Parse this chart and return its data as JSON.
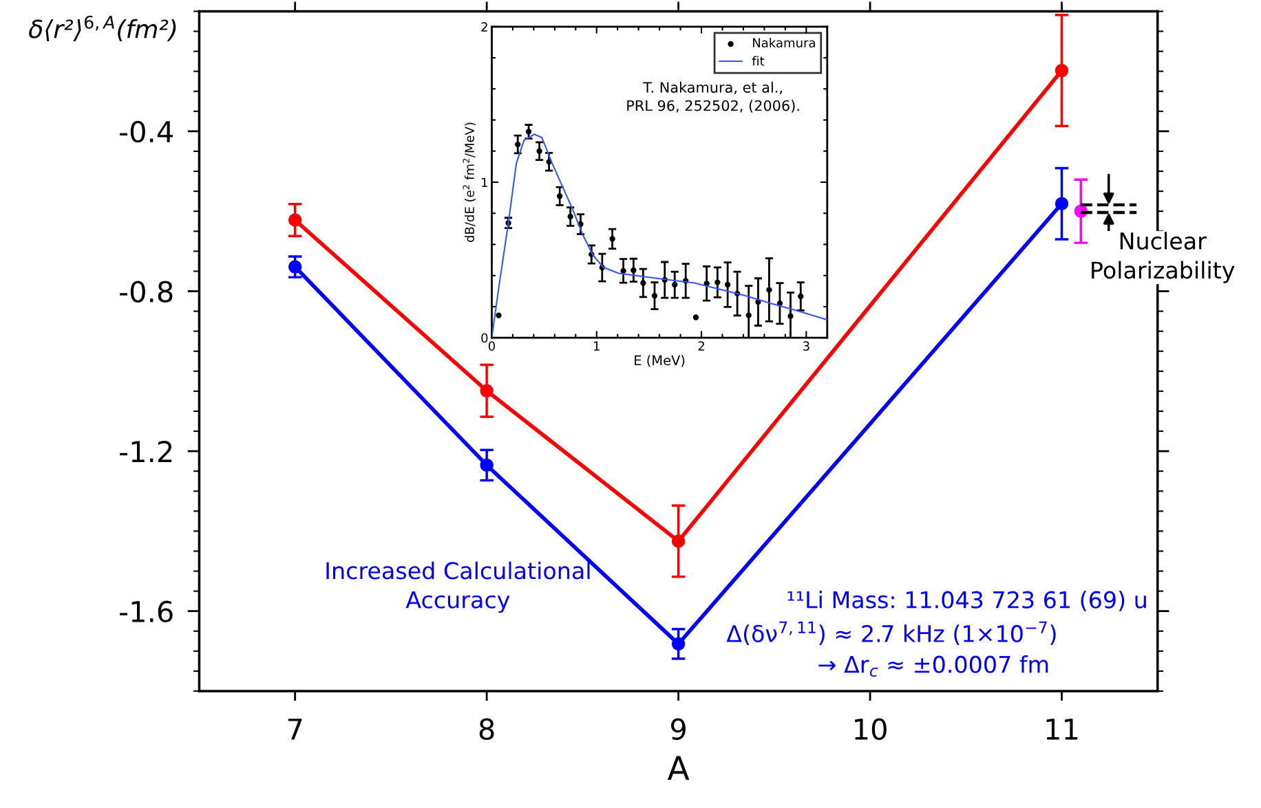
{
  "chart_data": [
    {
      "type": "line",
      "xlabel": "A",
      "ylabel": "δ⟨r²⟩$^{6,A}$(fm²)",
      "x": [
        7,
        8,
        9,
        11
      ],
      "xlim": [
        6.5,
        11.5
      ],
      "xticks": [
        7,
        8,
        9,
        10,
        11
      ],
      "ylim": [
        -1.8,
        -0.1
      ],
      "yticks": [
        -0.4,
        -0.8,
        -1.2,
        -1.6
      ],
      "grid": false,
      "legend": false,
      "marker": "circle",
      "line_style": "solid",
      "series": [
        {
          "color": "#ff0000",
          "values": [
            -0.622,
            -1.049,
            -1.425,
            -0.248
          ],
          "errors": [
            0.04,
            0.065,
            0.089,
            0.139
          ]
        },
        {
          "color": "#0000ff",
          "values": [
            -0.739,
            -1.235,
            -1.682,
            -0.581
          ],
          "errors": [
            0.026,
            0.038,
            0.037,
            0.089
          ]
        },
        {
          "type": "scatter",
          "color": "#ff00ff",
          "x": [
            11.1
          ],
          "values": [
            -0.6
          ],
          "errors": [
            0.079
          ]
        },
        {
          "color": "#000000",
          "x": [
            11.1,
            11.39
          ],
          "values": [
            -0.584,
            -0.584
          ],
          "line_style": "dashed",
          "marker": "none"
        },
        {
          "color": "#000000",
          "x": [
            11.1,
            11.39
          ],
          "values": [
            -0.603,
            -0.603
          ],
          "line_style": "dashed",
          "marker": "none"
        }
      ],
      "annotations": [
        "Increased Calculational\nAccuracy",
        "¹¹Li Mass: 11.043 723 61 (69) u",
        "Δ(δν$^{7,11}$) ≈ 2.7 kHz (1×10$^{−7}$)",
        "→ Δr$_{c}$ ≈ ±0.0007 fm",
        "Nuclear\nPolarizability"
      ]
    },
    {
      "type": "scatter",
      "xlabel": "E (MeV)",
      "ylabel": "dB/dE (e$^{2}$ fm$^{2}$/MeV)",
      "xlim": [
        0,
        3.2
      ],
      "xticks": [
        0,
        1,
        2,
        3
      ],
      "ylim": [
        0,
        2
      ],
      "yticks": [
        0,
        1,
        2
      ],
      "grid": false,
      "legend": "top right",
      "marker": "circle",
      "series": [
        {
          "name": "Nakamura",
          "color": "#000000",
          "x": [
            0.066,
            0.158,
            0.248,
            0.352,
            0.454,
            0.546,
            0.648,
            0.75,
            0.847,
            0.951,
            1.053,
            1.15,
            1.255,
            1.352,
            1.444,
            1.553,
            1.65,
            1.745,
            1.85,
            1.947,
            2.05,
            2.153,
            2.25,
            2.342,
            2.451,
            2.541,
            2.646,
            2.748,
            2.85,
            2.947
          ],
          "values": [
            0.144,
            0.738,
            1.243,
            1.325,
            1.2,
            1.131,
            0.91,
            0.779,
            0.73,
            0.536,
            0.451,
            0.636,
            0.43,
            0.434,
            0.352,
            0.27,
            0.372,
            0.341,
            0.366,
            0.131,
            0.349,
            0.356,
            0.341,
            0.284,
            0.144,
            0.23,
            0.308,
            0.221,
            0.139,
            0.266
          ],
          "errors": [
            null,
            0.033,
            0.057,
            0.044,
            0.057,
            0.057,
            0.058,
            0.059,
            0.064,
            0.058,
            0.088,
            0.063,
            0.076,
            0.074,
            0.09,
            0.086,
            0.115,
            0.084,
            0.109,
            null,
            0.11,
            0.096,
            0.143,
            0.141,
            0.19,
            0.152,
            0.203,
            0.131,
            0.152,
            0.09
          ]
        },
        {
          "name": "fit",
          "type": "line",
          "color": "#3355ff",
          "marker": "none",
          "x": [
            0,
            0.066,
            0.158,
            0.235,
            0.308,
            0.405,
            0.478,
            0.575,
            0.672,
            0.77,
            0.867,
            0.964,
            1.061,
            1.206,
            1.449,
            1.692,
            1.934,
            2.177,
            2.42,
            2.663,
            2.905,
            3.2
          ],
          "values": [
            0,
            0.32,
            0.738,
            1.123,
            1.27,
            1.308,
            1.287,
            1.123,
            0.975,
            0.828,
            0.664,
            0.533,
            0.454,
            0.415,
            0.393,
            0.372,
            0.352,
            0.311,
            0.27,
            0.221,
            0.175,
            0.115
          ]
        }
      ],
      "annotations": [
        "T. Nakamura, et al.,\nPRL 96, 252502, (2006)."
      ]
    }
  ]
}
